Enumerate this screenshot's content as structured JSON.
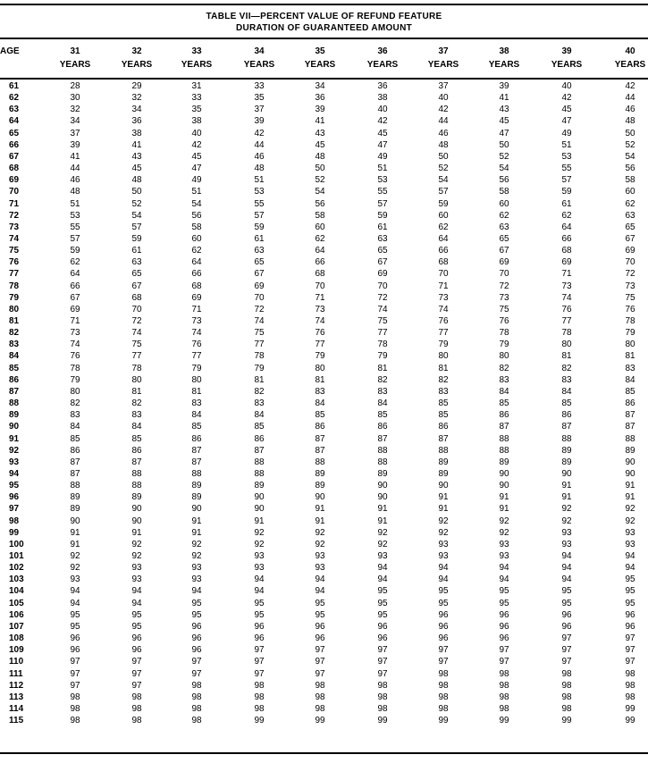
{
  "table": {
    "title_line1": "TABLE VII—PERCENT VALUE OF REFUND FEATURE",
    "title_line2": "DURATION OF GUARANTEED AMOUNT",
    "age_header": "AGE",
    "columns": [
      {
        "num": "31",
        "unit": "YEARS"
      },
      {
        "num": "32",
        "unit": "YEARS"
      },
      {
        "num": "33",
        "unit": "YEARS"
      },
      {
        "num": "34",
        "unit": "YEARS"
      },
      {
        "num": "35",
        "unit": "YEARS"
      },
      {
        "num": "36",
        "unit": "YEARS"
      },
      {
        "num": "37",
        "unit": "YEARS"
      },
      {
        "num": "38",
        "unit": "YEARS"
      },
      {
        "num": "39",
        "unit": "YEARS"
      },
      {
        "num": "40",
        "unit": "YEARS"
      }
    ],
    "rows": [
      {
        "age": "61",
        "values": [
          "28",
          "29",
          "31",
          "33",
          "34",
          "36",
          "37",
          "39",
          "40",
          "42"
        ]
      },
      {
        "age": "62",
        "values": [
          "30",
          "32",
          "33",
          "35",
          "36",
          "38",
          "40",
          "41",
          "42",
          "44"
        ]
      },
      {
        "age": "63",
        "values": [
          "32",
          "34",
          "35",
          "37",
          "39",
          "40",
          "42",
          "43",
          "45",
          "46"
        ]
      },
      {
        "age": "64",
        "values": [
          "34",
          "36",
          "38",
          "39",
          "41",
          "42",
          "44",
          "45",
          "47",
          "48"
        ]
      },
      {
        "age": "65",
        "values": [
          "37",
          "38",
          "40",
          "42",
          "43",
          "45",
          "46",
          "47",
          "49",
          "50"
        ]
      },
      {
        "age": "66",
        "values": [
          "39",
          "41",
          "42",
          "44",
          "45",
          "47",
          "48",
          "50",
          "51",
          "52"
        ]
      },
      {
        "age": "67",
        "values": [
          "41",
          "43",
          "45",
          "46",
          "48",
          "49",
          "50",
          "52",
          "53",
          "54"
        ]
      },
      {
        "age": "68",
        "values": [
          "44",
          "45",
          "47",
          "48",
          "50",
          "51",
          "52",
          "54",
          "55",
          "56"
        ]
      },
      {
        "age": "69",
        "values": [
          "46",
          "48",
          "49",
          "51",
          "52",
          "53",
          "54",
          "56",
          "57",
          "58"
        ]
      },
      {
        "age": "70",
        "values": [
          "48",
          "50",
          "51",
          "53",
          "54",
          "55",
          "57",
          "58",
          "59",
          "60"
        ]
      },
      {
        "age": "71",
        "values": [
          "51",
          "52",
          "54",
          "55",
          "56",
          "57",
          "59",
          "60",
          "61",
          "62"
        ]
      },
      {
        "age": "72",
        "values": [
          "53",
          "54",
          "56",
          "57",
          "58",
          "59",
          "60",
          "62",
          "62",
          "63"
        ]
      },
      {
        "age": "73",
        "values": [
          "55",
          "57",
          "58",
          "59",
          "60",
          "61",
          "62",
          "63",
          "64",
          "65"
        ]
      },
      {
        "age": "74",
        "values": [
          "57",
          "59",
          "60",
          "61",
          "62",
          "63",
          "64",
          "65",
          "66",
          "67"
        ]
      },
      {
        "age": "75",
        "values": [
          "59",
          "61",
          "62",
          "63",
          "64",
          "65",
          "66",
          "67",
          "68",
          "69"
        ]
      },
      {
        "age": "76",
        "values": [
          "62",
          "63",
          "64",
          "65",
          "66",
          "67",
          "68",
          "69",
          "69",
          "70"
        ]
      },
      {
        "age": "77",
        "values": [
          "64",
          "65",
          "66",
          "67",
          "68",
          "69",
          "70",
          "70",
          "71",
          "72"
        ]
      },
      {
        "age": "78",
        "values": [
          "66",
          "67",
          "68",
          "69",
          "70",
          "70",
          "71",
          "72",
          "73",
          "73"
        ]
      },
      {
        "age": "79",
        "values": [
          "67",
          "68",
          "69",
          "70",
          "71",
          "72",
          "73",
          "73",
          "74",
          "75"
        ]
      },
      {
        "age": "80",
        "values": [
          "69",
          "70",
          "71",
          "72",
          "73",
          "74",
          "74",
          "75",
          "76",
          "76"
        ]
      },
      {
        "age": "81",
        "values": [
          "71",
          "72",
          "73",
          "74",
          "74",
          "75",
          "76",
          "76",
          "77",
          "78"
        ]
      },
      {
        "age": "82",
        "values": [
          "73",
          "74",
          "74",
          "75",
          "76",
          "77",
          "77",
          "78",
          "78",
          "79"
        ]
      },
      {
        "age": "83",
        "values": [
          "74",
          "75",
          "76",
          "77",
          "77",
          "78",
          "79",
          "79",
          "80",
          "80"
        ]
      },
      {
        "age": "84",
        "values": [
          "76",
          "77",
          "77",
          "78",
          "79",
          "79",
          "80",
          "80",
          "81",
          "81"
        ]
      },
      {
        "age": "85",
        "values": [
          "78",
          "78",
          "79",
          "79",
          "80",
          "81",
          "81",
          "82",
          "82",
          "83"
        ]
      },
      {
        "age": "86",
        "values": [
          "79",
          "80",
          "80",
          "81",
          "81",
          "82",
          "82",
          "83",
          "83",
          "84"
        ]
      },
      {
        "age": "87",
        "values": [
          "80",
          "81",
          "81",
          "82",
          "83",
          "83",
          "83",
          "84",
          "84",
          "85"
        ]
      },
      {
        "age": "88",
        "values": [
          "82",
          "82",
          "83",
          "83",
          "84",
          "84",
          "85",
          "85",
          "85",
          "86"
        ]
      },
      {
        "age": "89",
        "values": [
          "83",
          "83",
          "84",
          "84",
          "85",
          "85",
          "85",
          "86",
          "86",
          "87"
        ]
      },
      {
        "age": "90",
        "values": [
          "84",
          "84",
          "85",
          "85",
          "86",
          "86",
          "86",
          "87",
          "87",
          "87"
        ]
      },
      {
        "age": "91",
        "values": [
          "85",
          "85",
          "86",
          "86",
          "87",
          "87",
          "87",
          "88",
          "88",
          "88"
        ]
      },
      {
        "age": "92",
        "values": [
          "86",
          "86",
          "87",
          "87",
          "87",
          "88",
          "88",
          "88",
          "89",
          "89"
        ]
      },
      {
        "age": "93",
        "values": [
          "87",
          "87",
          "87",
          "88",
          "88",
          "88",
          "89",
          "89",
          "89",
          "90"
        ]
      },
      {
        "age": "94",
        "values": [
          "87",
          "88",
          "88",
          "88",
          "89",
          "89",
          "89",
          "90",
          "90",
          "90"
        ]
      },
      {
        "age": "95",
        "values": [
          "88",
          "88",
          "89",
          "89",
          "89",
          "90",
          "90",
          "90",
          "91",
          "91"
        ]
      },
      {
        "age": "96",
        "values": [
          "89",
          "89",
          "89",
          "90",
          "90",
          "90",
          "91",
          "91",
          "91",
          "91"
        ]
      },
      {
        "age": "97",
        "values": [
          "89",
          "90",
          "90",
          "90",
          "91",
          "91",
          "91",
          "91",
          "92",
          "92"
        ]
      },
      {
        "age": "98",
        "values": [
          "90",
          "90",
          "91",
          "91",
          "91",
          "91",
          "92",
          "92",
          "92",
          "92"
        ]
      },
      {
        "age": "99",
        "values": [
          "91",
          "91",
          "91",
          "92",
          "92",
          "92",
          "92",
          "92",
          "93",
          "93"
        ]
      },
      {
        "age": "100",
        "values": [
          "91",
          "92",
          "92",
          "92",
          "92",
          "92",
          "93",
          "93",
          "93",
          "93"
        ]
      },
      {
        "age": "101",
        "values": [
          "92",
          "92",
          "92",
          "93",
          "93",
          "93",
          "93",
          "93",
          "94",
          "94"
        ]
      },
      {
        "age": "102",
        "values": [
          "92",
          "93",
          "93",
          "93",
          "93",
          "94",
          "94",
          "94",
          "94",
          "94"
        ]
      },
      {
        "age": "103",
        "values": [
          "93",
          "93",
          "93",
          "94",
          "94",
          "94",
          "94",
          "94",
          "94",
          "95"
        ]
      },
      {
        "age": "104",
        "values": [
          "94",
          "94",
          "94",
          "94",
          "94",
          "95",
          "95",
          "95",
          "95",
          "95"
        ]
      },
      {
        "age": "105",
        "values": [
          "94",
          "94",
          "95",
          "95",
          "95",
          "95",
          "95",
          "95",
          "95",
          "95"
        ]
      },
      {
        "age": "106",
        "values": [
          "95",
          "95",
          "95",
          "95",
          "95",
          "95",
          "96",
          "96",
          "96",
          "96"
        ]
      },
      {
        "age": "107",
        "values": [
          "95",
          "95",
          "96",
          "96",
          "96",
          "96",
          "96",
          "96",
          "96",
          "96"
        ]
      },
      {
        "age": "108",
        "values": [
          "96",
          "96",
          "96",
          "96",
          "96",
          "96",
          "96",
          "96",
          "97",
          "97"
        ]
      },
      {
        "age": "109",
        "values": [
          "96",
          "96",
          "96",
          "97",
          "97",
          "97",
          "97",
          "97",
          "97",
          "97"
        ]
      },
      {
        "age": "110",
        "values": [
          "97",
          "97",
          "97",
          "97",
          "97",
          "97",
          "97",
          "97",
          "97",
          "97"
        ]
      },
      {
        "age": "111",
        "values": [
          "97",
          "97",
          "97",
          "97",
          "97",
          "97",
          "98",
          "98",
          "98",
          "98"
        ]
      },
      {
        "age": "112",
        "values": [
          "97",
          "97",
          "98",
          "98",
          "98",
          "98",
          "98",
          "98",
          "98",
          "98"
        ]
      },
      {
        "age": "113",
        "values": [
          "98",
          "98",
          "98",
          "98",
          "98",
          "98",
          "98",
          "98",
          "98",
          "98"
        ]
      },
      {
        "age": "114",
        "values": [
          "98",
          "98",
          "98",
          "98",
          "98",
          "98",
          "98",
          "98",
          "98",
          "99"
        ]
      },
      {
        "age": "115",
        "values": [
          "98",
          "98",
          "98",
          "99",
          "99",
          "99",
          "99",
          "99",
          "99",
          "99"
        ]
      }
    ]
  }
}
